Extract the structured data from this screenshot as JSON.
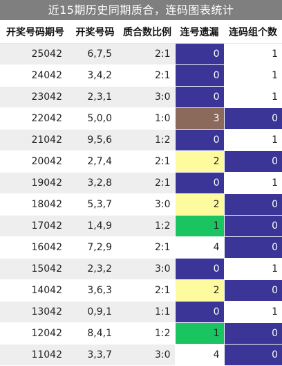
{
  "title": "近15期历史同期质合，连码图表统计",
  "headers": [
    "开奖号码期号",
    "开奖号码",
    "质合数比例",
    "连号遗漏",
    "连码组个数"
  ],
  "colors": {
    "navy": "#3a3596",
    "brown": "#8b6a5b",
    "yellow": "#fefb9e",
    "green": "#19c461",
    "header_bg": "#7f7f7f"
  },
  "rows": [
    {
      "issue": "25042",
      "numbers": "6,7,5",
      "ratio": "2:1",
      "miss": "0",
      "miss_color": "navy",
      "groups": "1",
      "groups_color": "plain"
    },
    {
      "issue": "24042",
      "numbers": "3,4,2",
      "ratio": "2:1",
      "miss": "0",
      "miss_color": "navy",
      "groups": "1",
      "groups_color": "plain"
    },
    {
      "issue": "23042",
      "numbers": "2,3,1",
      "ratio": "3:0",
      "miss": "0",
      "miss_color": "navy",
      "groups": "1",
      "groups_color": "plain"
    },
    {
      "issue": "22042",
      "numbers": "5,0,0",
      "ratio": "1:0",
      "miss": "3",
      "miss_color": "brown",
      "groups": "0",
      "groups_color": "navy"
    },
    {
      "issue": "21042",
      "numbers": "9,5,6",
      "ratio": "1:2",
      "miss": "0",
      "miss_color": "navy",
      "groups": "1",
      "groups_color": "plain"
    },
    {
      "issue": "20042",
      "numbers": "2,7,4",
      "ratio": "2:1",
      "miss": "2",
      "miss_color": "yellow",
      "groups": "0",
      "groups_color": "navy"
    },
    {
      "issue": "19042",
      "numbers": "3,2,8",
      "ratio": "2:1",
      "miss": "0",
      "miss_color": "navy",
      "groups": "1",
      "groups_color": "plain"
    },
    {
      "issue": "18042",
      "numbers": "5,3,7",
      "ratio": "3:0",
      "miss": "2",
      "miss_color": "yellow",
      "groups": "0",
      "groups_color": "navy"
    },
    {
      "issue": "17042",
      "numbers": "1,4,9",
      "ratio": "1:2",
      "miss": "1",
      "miss_color": "green",
      "groups": "0",
      "groups_color": "navy"
    },
    {
      "issue": "16042",
      "numbers": "7,2,9",
      "ratio": "2:1",
      "miss": "4",
      "miss_color": "plain",
      "groups": "0",
      "groups_color": "navy"
    },
    {
      "issue": "15042",
      "numbers": "2,3,2",
      "ratio": "3:0",
      "miss": "0",
      "miss_color": "navy",
      "groups": "1",
      "groups_color": "plain"
    },
    {
      "issue": "14042",
      "numbers": "3,6,3",
      "ratio": "2:1",
      "miss": "2",
      "miss_color": "yellow",
      "groups": "0",
      "groups_color": "navy"
    },
    {
      "issue": "13042",
      "numbers": "0,9,1",
      "ratio": "1:1",
      "miss": "0",
      "miss_color": "navy",
      "groups": "1",
      "groups_color": "plain"
    },
    {
      "issue": "12042",
      "numbers": "8,4,1",
      "ratio": "1:2",
      "miss": "1",
      "miss_color": "green",
      "groups": "0",
      "groups_color": "navy"
    },
    {
      "issue": "11042",
      "numbers": "3,3,7",
      "ratio": "3:0",
      "miss": "4",
      "miss_color": "plain",
      "groups": "0",
      "groups_color": "navy"
    }
  ]
}
